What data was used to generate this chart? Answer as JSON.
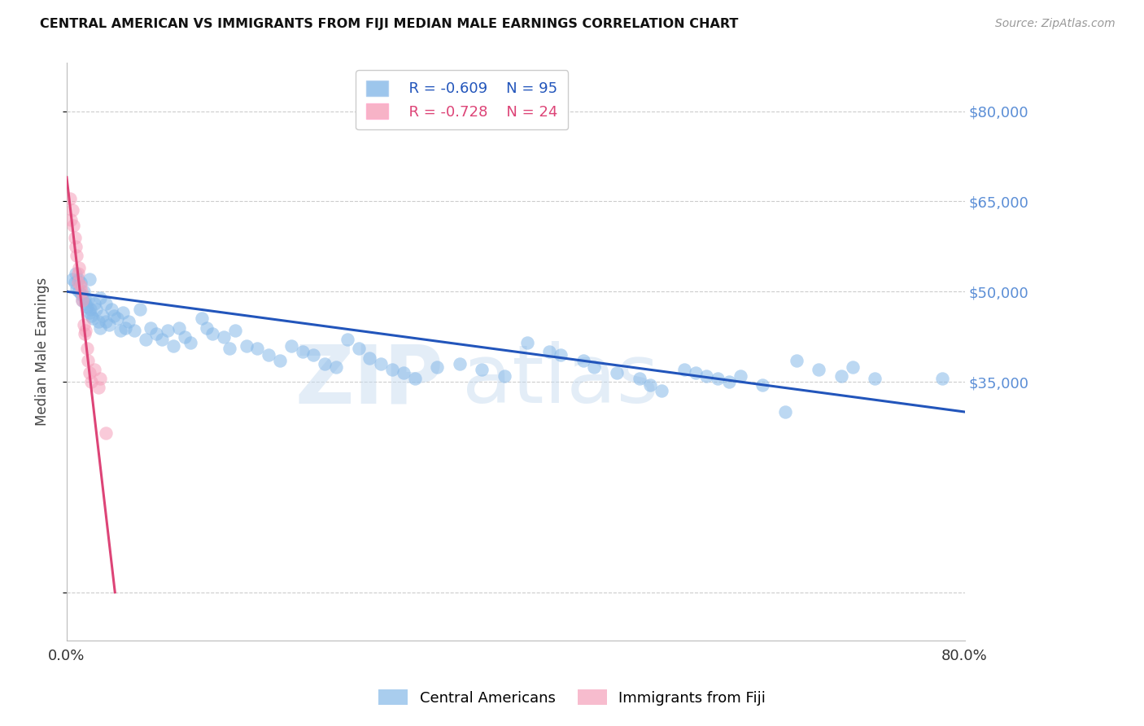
{
  "title": "CENTRAL AMERICAN VS IMMIGRANTS FROM FIJI MEDIAN MALE EARNINGS CORRELATION CHART",
  "source": "Source: ZipAtlas.com",
  "ylabel": "Median Male Earnings",
  "yticks": [
    0,
    35000,
    50000,
    65000,
    80000
  ],
  "ytick_labels": [
    "",
    "$35,000",
    "$50,000",
    "$65,000",
    "$80,000"
  ],
  "blue_color": "#85B8E8",
  "pink_color": "#F5A0BA",
  "blue_line_color": "#2255BB",
  "pink_line_color": "#DD4477",
  "watermark_color": "#C8DCF0",
  "legend_blue_R": "R = -0.609",
  "legend_blue_N": "N = 95",
  "legend_pink_R": "R = -0.728",
  "legend_pink_N": "N = 24",
  "blue_scatter_x": [
    0.5,
    0.7,
    0.8,
    0.9,
    1.0,
    1.1,
    1.2,
    1.3,
    1.4,
    1.5,
    1.6,
    1.7,
    1.8,
    1.9,
    2.0,
    2.0,
    2.1,
    2.2,
    2.3,
    2.5,
    2.6,
    2.8,
    3.0,
    3.0,
    3.2,
    3.5,
    3.5,
    3.8,
    4.0,
    4.2,
    4.5,
    4.8,
    5.0,
    5.2,
    5.5,
    6.0,
    6.5,
    7.0,
    7.5,
    8.0,
    8.5,
    9.0,
    9.5,
    10.0,
    10.5,
    11.0,
    12.0,
    12.5,
    13.0,
    14.0,
    14.5,
    15.0,
    16.0,
    17.0,
    18.0,
    19.0,
    20.0,
    21.0,
    22.0,
    23.0,
    24.0,
    25.0,
    26.0,
    27.0,
    28.0,
    29.0,
    30.0,
    31.0,
    33.0,
    35.0,
    37.0,
    39.0,
    41.0,
    43.0,
    44.0,
    46.0,
    47.0,
    49.0,
    51.0,
    52.0,
    53.0,
    55.0,
    56.0,
    57.0,
    58.0,
    59.0,
    60.0,
    62.0,
    64.0,
    65.0,
    67.0,
    69.0,
    70.0,
    72.0,
    78.0
  ],
  "blue_scatter_y": [
    52000,
    51500,
    53000,
    50500,
    52000,
    50000,
    51500,
    49500,
    48500,
    50000,
    49000,
    48000,
    47500,
    48500,
    46500,
    52000,
    47000,
    46000,
    45500,
    48000,
    47000,
    45000,
    49000,
    44000,
    46000,
    48000,
    45000,
    44500,
    47000,
    46000,
    45500,
    43500,
    46500,
    44000,
    45000,
    43500,
    47000,
    42000,
    44000,
    43000,
    42000,
    43500,
    41000,
    44000,
    42500,
    41500,
    45500,
    44000,
    43000,
    42500,
    40500,
    43500,
    41000,
    40500,
    39500,
    38500,
    41000,
    40000,
    39500,
    38000,
    37500,
    42000,
    40500,
    39000,
    38000,
    37000,
    36500,
    35500,
    37500,
    38000,
    37000,
    36000,
    41500,
    40000,
    39500,
    38500,
    37500,
    36500,
    35500,
    34500,
    33500,
    37000,
    36500,
    36000,
    35500,
    35000,
    36000,
    34500,
    30000,
    38500,
    37000,
    36000,
    37500,
    35500,
    35500
  ],
  "pink_scatter_x": [
    0.3,
    0.4,
    0.5,
    0.6,
    0.7,
    0.8,
    0.9,
    1.0,
    1.0,
    1.1,
    1.2,
    1.3,
    1.4,
    1.5,
    1.6,
    1.7,
    1.8,
    1.9,
    2.0,
    2.2,
    2.5,
    2.8,
    3.0,
    3.5
  ],
  "pink_scatter_y": [
    65500,
    62000,
    63500,
    61000,
    59000,
    57500,
    56000,
    53000,
    51500,
    54000,
    51000,
    50000,
    48500,
    44500,
    43000,
    43500,
    40500,
    38500,
    36500,
    35000,
    37000,
    34000,
    35500,
    26500
  ],
  "blue_line_x0": 0.0,
  "blue_line_x1": 80.0,
  "blue_line_y0": 50000,
  "blue_line_y1": 30000,
  "pink_line_x0": 0.0,
  "pink_line_x1": 4.3,
  "pink_line_y0": 69000,
  "pink_line_y1": 0,
  "xlim": [
    0,
    80
  ],
  "ylim": [
    -8000,
    88000
  ],
  "background_color": "#FFFFFF",
  "grid_color": "#CCCCCC",
  "title_color": "#111111",
  "source_color": "#999999",
  "ylabel_color": "#444444",
  "yticklabel_color": "#5B8ED6",
  "xticklabel_color": "#333333"
}
